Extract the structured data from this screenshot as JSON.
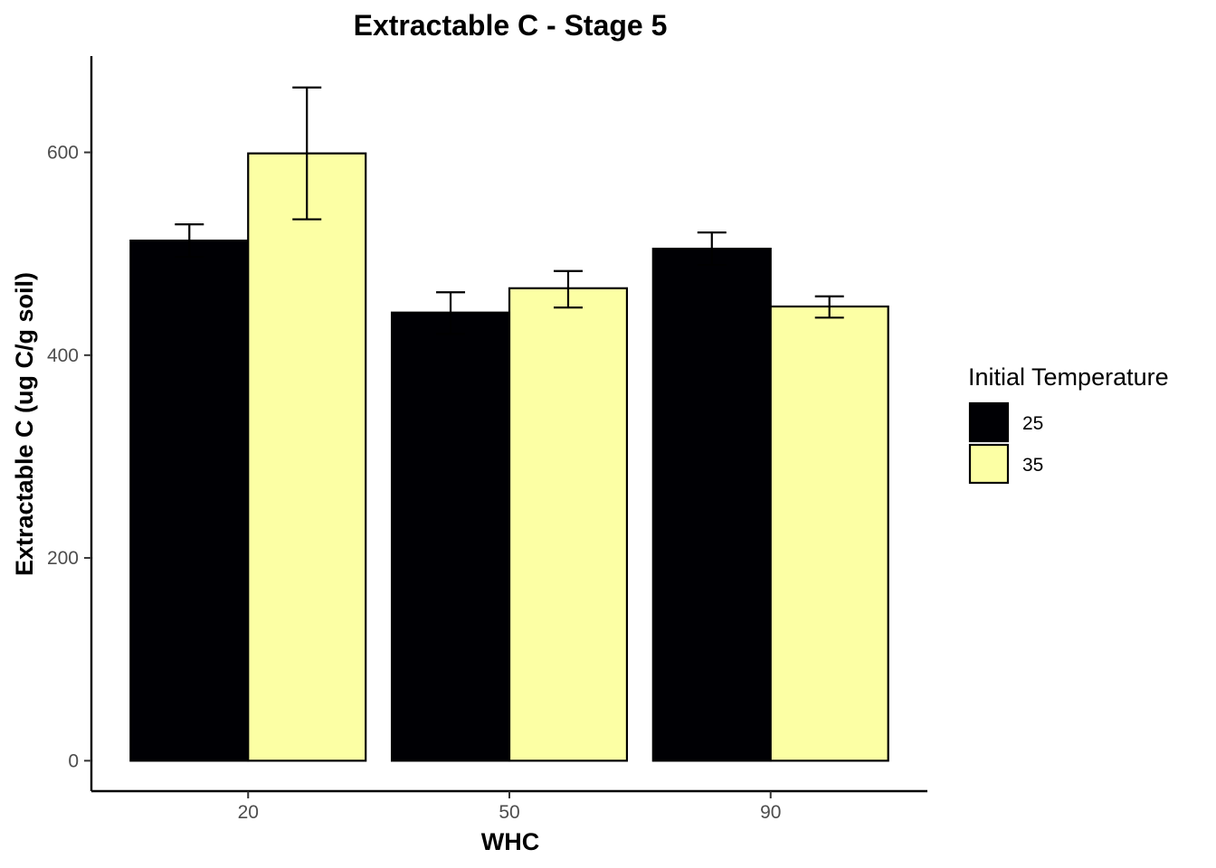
{
  "chart_data": {
    "type": "bar",
    "title": "Extractable C - Stage 5",
    "xlabel": "WHC",
    "ylabel": "Extractable C (ug C/g soil)",
    "categories": [
      "20",
      "50",
      "90"
    ],
    "ylim": [
      -30,
      695
    ],
    "yticks": [
      0,
      200,
      400,
      600
    ],
    "series": [
      {
        "name": "25",
        "color": "#000004",
        "values": [
          513,
          442,
          505
        ],
        "err_low": [
          497,
          421,
          489
        ],
        "err_high": [
          529,
          462,
          521
        ]
      },
      {
        "name": "35",
        "color": "#FCFFA4",
        "values": [
          599,
          466,
          448
        ],
        "err_low": [
          534,
          447,
          437
        ],
        "err_high": [
          664,
          483,
          458
        ]
      }
    ],
    "legend": {
      "title": "Initial Temperature",
      "position": "right"
    },
    "grid": false
  }
}
